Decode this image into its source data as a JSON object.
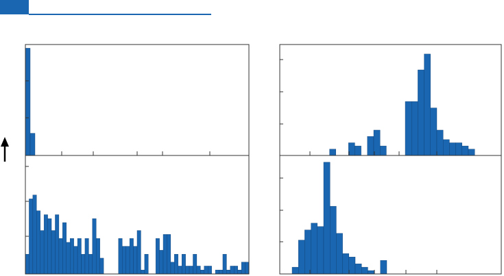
{
  "colors": {
    "accent": "#1a66b0",
    "bar_fill": "#1a66b0",
    "bar_stroke": "#0e3f74",
    "axis": "#333333",
    "arrow": "#000000"
  },
  "header": {
    "accent_icon": "blue-square-icon"
  },
  "indicator": {
    "icon": "up-arrow-icon"
  },
  "chart_data": [
    {
      "type": "bar",
      "panel": "top-left",
      "xlim": [
        0,
        60
      ],
      "ylim": [
        0,
        30
      ],
      "values": [
        29,
        6
      ]
    },
    {
      "type": "bar",
      "panel": "bottom-left",
      "xlim": [
        0,
        60
      ],
      "ylim": [
        0,
        30
      ],
      "values": [
        5,
        19,
        20,
        16,
        11,
        15,
        14,
        11,
        15,
        9,
        13,
        8,
        9,
        7,
        9,
        5,
        9,
        5,
        14,
        9,
        4,
        0,
        0,
        0,
        0,
        9,
        7,
        7,
        9,
        7,
        11,
        1,
        5,
        0,
        0,
        9,
        6,
        10,
        10,
        3,
        5,
        2,
        5,
        2,
        2,
        5,
        2,
        1,
        2,
        2,
        0,
        1,
        1,
        5,
        1,
        2,
        2,
        1,
        3,
        3
      ]
    },
    {
      "type": "bar",
      "panel": "top-right",
      "xlim": [
        0,
        100
      ],
      "ylim": [
        0,
        35
      ],
      "values": [
        0,
        0,
        0,
        0,
        0,
        0,
        0,
        0,
        2,
        0,
        0,
        4,
        3,
        0,
        6,
        8,
        3,
        0,
        0,
        0,
        17,
        17,
        27,
        32,
        15,
        8,
        5,
        4,
        4,
        3,
        2
      ]
    },
    {
      "type": "bar",
      "panel": "bottom-right",
      "xlim": [
        0,
        100
      ],
      "ylim": [
        0,
        35
      ],
      "values": [
        0,
        0,
        0,
        0,
        0,
        2,
        10,
        13,
        15,
        14,
        33,
        20,
        12,
        6,
        5,
        3,
        2,
        1,
        0,
        4
      ]
    }
  ]
}
